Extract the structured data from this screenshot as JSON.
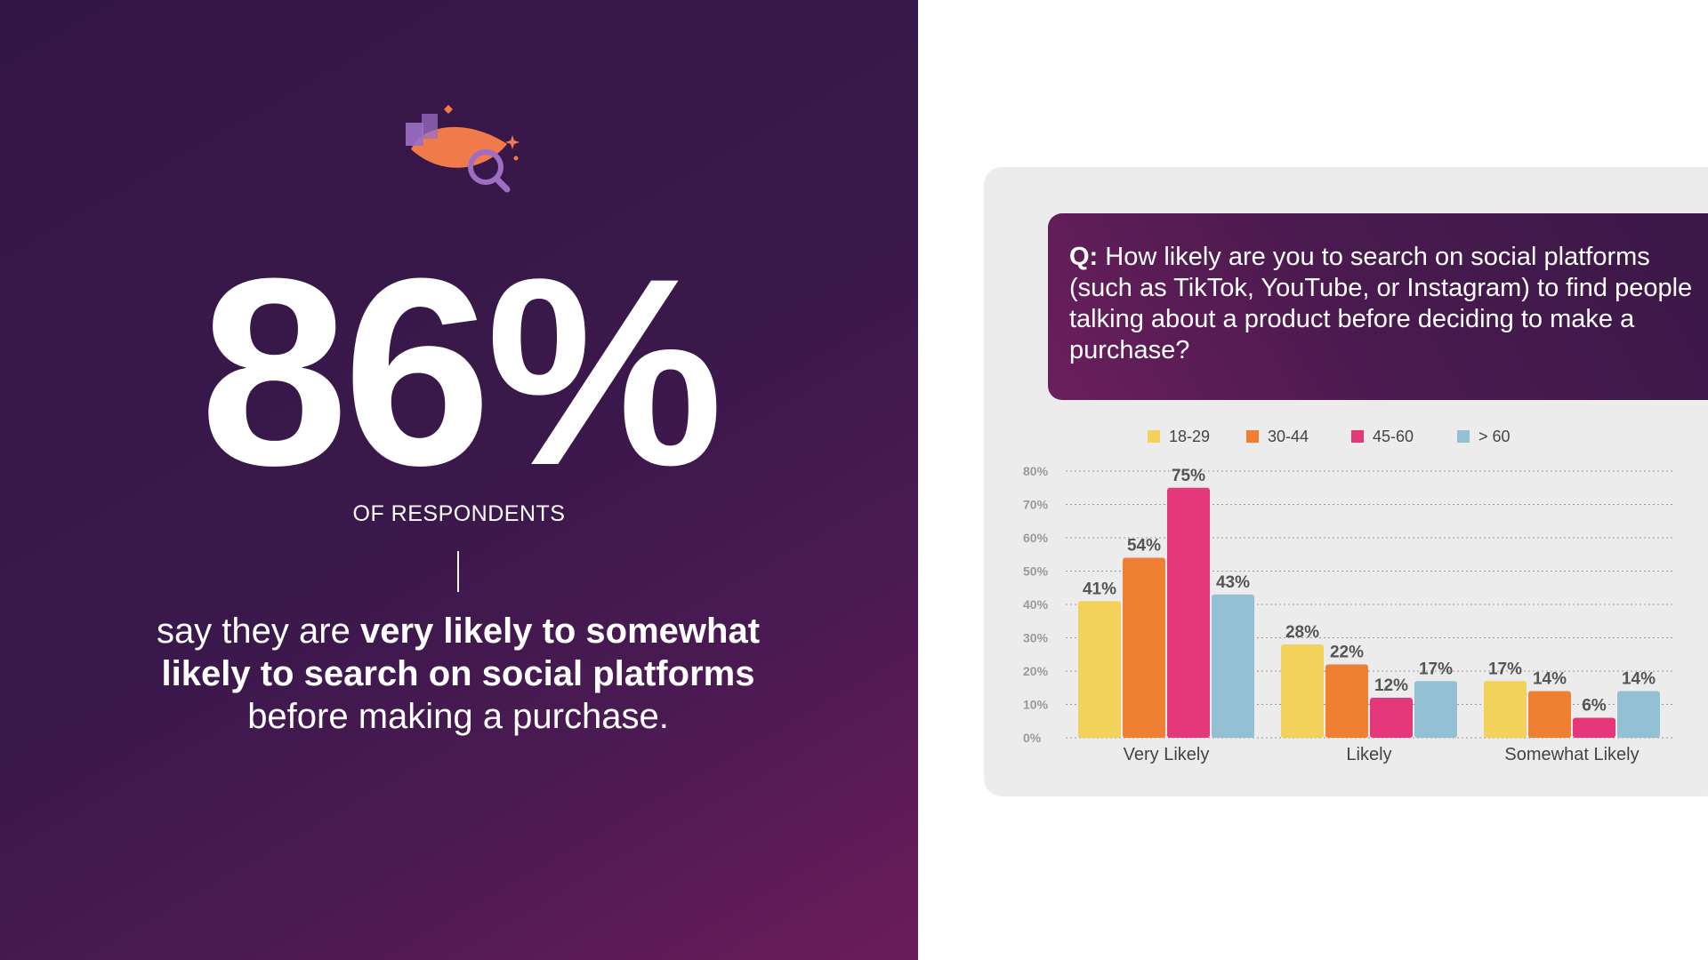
{
  "hero": {
    "stat": "86%",
    "subtitle": "OF RESPONDENTS",
    "desc_1": "say they are ",
    "desc_bold_1": "very likely to somewhat likely to search on social platforms",
    "desc_2": " before making a purchase."
  },
  "question": {
    "prefix": "Q:",
    "text": " How likely are you to search on social platforms (such as TikTok, YouTube, or Instagram) to find people talking about a product before deciding to make a purchase?"
  },
  "colors": {
    "18-29": "#f3d25c",
    "30-44": "#ee7f33",
    "45-60": "#e5387a",
    "over-60": "#94c0d4",
    "icon_orange": "#f07a4a",
    "icon_purple": "#9c6fc4"
  },
  "chart_data": {
    "type": "bar",
    "categories": [
      "Very Likely",
      "Likely",
      "Somewhat Likely"
    ],
    "series": [
      {
        "name": "18-29",
        "values": [
          41,
          28,
          17
        ]
      },
      {
        "name": "30-44",
        "values": [
          54,
          22,
          14
        ]
      },
      {
        "name": "45-60",
        "values": [
          75,
          12,
          6
        ]
      },
      {
        "name": "> 60",
        "values": [
          43,
          17,
          14
        ]
      }
    ],
    "data_labels": [
      [
        "41%",
        "28%",
        "17%"
      ],
      [
        "54%",
        "22%",
        "14%"
      ],
      [
        "75%",
        "12%",
        "6%"
      ],
      [
        "43%",
        "17%",
        "14%"
      ]
    ],
    "yticks": [
      "0%",
      "10%",
      "20%",
      "30%",
      "40%",
      "50%",
      "60%",
      "70%",
      "80%"
    ],
    "ylim": [
      0,
      80
    ],
    "grid": true,
    "legend_position": "top"
  }
}
